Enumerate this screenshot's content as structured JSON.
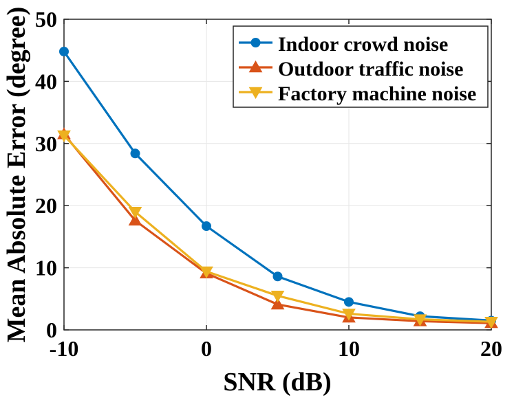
{
  "chart_data": {
    "type": "line",
    "title": "",
    "xlabel": "SNR (dB)",
    "ylabel": "Mean Absolute Error (degree)",
    "x": [
      -10,
      -5,
      0,
      5,
      10,
      15,
      20
    ],
    "xlim": [
      -10,
      20
    ],
    "ylim": [
      0,
      50
    ],
    "xticks": [
      -10,
      0,
      10,
      20
    ],
    "yticks": [
      0,
      10,
      20,
      30,
      40,
      50
    ],
    "xtick_labels": [
      "-10",
      "0",
      "10",
      "20"
    ],
    "ytick_labels": [
      "0",
      "10",
      "20",
      "30",
      "40",
      "50"
    ],
    "grid": true,
    "legend_position": "top-right",
    "series": [
      {
        "name": "Indoor crowd noise",
        "color": "#0072BD",
        "marker": "circle",
        "values": [
          44.8,
          28.4,
          16.7,
          8.6,
          4.5,
          2.2,
          1.5
        ]
      },
      {
        "name": "Outdoor traffic noise",
        "color": "#D95319",
        "marker": "triangle-up",
        "values": [
          31.5,
          17.6,
          9.1,
          4.1,
          2.0,
          1.4,
          1.1
        ]
      },
      {
        "name": "Factory machine noise",
        "color": "#EDB120",
        "marker": "triangle-down",
        "values": [
          31.3,
          19.0,
          9.4,
          5.5,
          2.6,
          1.7,
          1.3
        ]
      }
    ]
  }
}
